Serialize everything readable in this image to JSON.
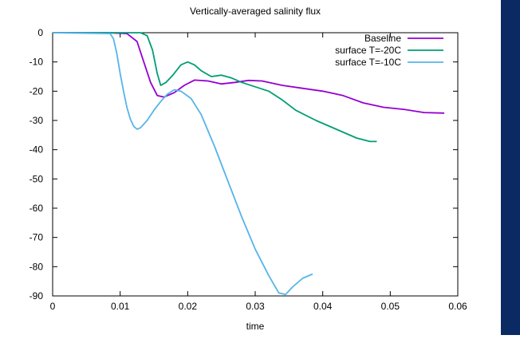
{
  "chart_data": {
    "type": "line",
    "title": "Vertically-averaged salinity flux",
    "xlabel": "time",
    "ylabel": "",
    "xlim": [
      0,
      0.06
    ],
    "ylim": [
      -90,
      0
    ],
    "xticks": [
      0,
      0.01,
      0.02,
      0.03,
      0.04,
      0.05,
      0.06
    ],
    "xtick_labels": [
      "0",
      "0.01",
      "0.02",
      "0.03",
      "0.04",
      "0.05",
      "0.06"
    ],
    "yticks": [
      0,
      -10,
      -20,
      -30,
      -40,
      -50,
      -60,
      -70,
      -80,
      -90
    ],
    "ytick_labels": [
      "0",
      "-10",
      "-20",
      "-30",
      "-40",
      "-50",
      "-60",
      "-70",
      "-80",
      "-90"
    ],
    "grid": false,
    "legend_position": "top-right",
    "series": [
      {
        "name": "Baseline",
        "color": "#9400d3",
        "x": [
          0,
          0.008,
          0.011,
          0.0125,
          0.0135,
          0.0145,
          0.0155,
          0.0165,
          0.018,
          0.0195,
          0.021,
          0.023,
          0.025,
          0.027,
          0.029,
          0.031,
          0.034,
          0.037,
          0.04,
          0.043,
          0.046,
          0.049,
          0.052,
          0.055,
          0.058
        ],
        "y": [
          0,
          0,
          -0.3,
          -3,
          -10,
          -17,
          -21.5,
          -22,
          -20.5,
          -18,
          -16.2,
          -16.5,
          -17.5,
          -17,
          -16.3,
          -16.5,
          -18,
          -19,
          -20,
          -21.5,
          -24,
          -25.5,
          -26.2,
          -27.3,
          -27.5
        ]
      },
      {
        "name": "surface T=-20C",
        "color": "#009e73",
        "x": [
          0,
          0.013,
          0.014,
          0.0148,
          0.0155,
          0.016,
          0.0168,
          0.0178,
          0.019,
          0.02,
          0.021,
          0.022,
          0.0235,
          0.025,
          0.0265,
          0.028,
          0.03,
          0.032,
          0.034,
          0.036,
          0.039,
          0.042,
          0.045,
          0.047,
          0.048
        ],
        "y": [
          0,
          0,
          -1,
          -6,
          -14,
          -18,
          -17,
          -14.5,
          -11,
          -10,
          -11,
          -13,
          -15,
          -14.5,
          -15.5,
          -17,
          -18.5,
          -20,
          -23,
          -26.5,
          -30,
          -33,
          -36,
          -37.2,
          -37.2
        ]
      },
      {
        "name": "surface T=-10C",
        "color": "#56b4e9",
        "x": [
          0,
          0.0085,
          0.009,
          0.0095,
          0.01,
          0.0105,
          0.011,
          0.0115,
          0.012,
          0.0125,
          0.013,
          0.014,
          0.015,
          0.016,
          0.017,
          0.018,
          0.019,
          0.0205,
          0.022,
          0.024,
          0.026,
          0.028,
          0.03,
          0.032,
          0.0335,
          0.0345,
          0.0355,
          0.037,
          0.0385
        ],
        "y": [
          0,
          -0.3,
          -2,
          -7,
          -14,
          -20,
          -25.5,
          -29.5,
          -32,
          -33,
          -32.5,
          -30,
          -26.5,
          -23.5,
          -21,
          -19.5,
          -20,
          -22.5,
          -28,
          -39,
          -51,
          -63,
          -74,
          -83,
          -89,
          -89.5,
          -87,
          -84,
          -82.5
        ]
      }
    ]
  }
}
